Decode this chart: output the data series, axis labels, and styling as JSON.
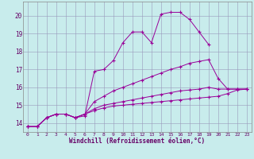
{
  "xlabel": "Windchill (Refroidissement éolien,°C)",
  "bg_color": "#c8ecec",
  "line_color": "#990099",
  "grid_color": "#9999bb",
  "xlim": [
    -0.5,
    23.5
  ],
  "ylim": [
    13.5,
    20.8
  ],
  "yticks": [
    14,
    15,
    16,
    17,
    18,
    19,
    20
  ],
  "xticks": [
    0,
    1,
    2,
    3,
    4,
    5,
    6,
    7,
    8,
    9,
    10,
    11,
    12,
    13,
    14,
    15,
    16,
    17,
    18,
    19,
    20,
    21,
    22,
    23
  ],
  "series": [
    {
      "x": [
        0,
        1,
        2,
        3,
        4,
        5,
        6,
        7,
        8,
        9,
        10,
        11,
        12,
        13,
        14,
        15,
        16,
        17,
        18,
        19
      ],
      "y": [
        13.8,
        13.8,
        14.3,
        14.5,
        14.5,
        14.3,
        14.4,
        16.9,
        17.0,
        17.5,
        18.5,
        19.1,
        19.1,
        18.5,
        20.1,
        20.2,
        20.2,
        19.8,
        19.1,
        18.4
      ]
    },
    {
      "x": [
        0,
        1,
        2,
        3,
        4,
        5,
        6,
        7,
        8,
        9,
        10,
        11,
        12,
        13,
        14,
        15,
        16,
        17,
        18,
        19,
        20,
        21,
        22,
        23
      ],
      "y": [
        13.8,
        13.8,
        14.3,
        14.5,
        14.5,
        14.3,
        14.5,
        15.2,
        15.5,
        15.8,
        16.0,
        16.2,
        16.4,
        16.6,
        16.8,
        17.0,
        17.15,
        17.35,
        17.45,
        17.55,
        16.5,
        15.9,
        15.9,
        15.9
      ]
    },
    {
      "x": [
        0,
        1,
        2,
        3,
        4,
        5,
        6,
        7,
        8,
        9,
        10,
        11,
        12,
        13,
        14,
        15,
        16,
        17,
        18,
        19,
        20,
        21,
        22,
        23
      ],
      "y": [
        13.8,
        13.8,
        14.3,
        14.5,
        14.5,
        14.3,
        14.5,
        14.8,
        15.0,
        15.1,
        15.2,
        15.3,
        15.4,
        15.5,
        15.6,
        15.7,
        15.8,
        15.85,
        15.9,
        16.0,
        15.9,
        15.9,
        15.9,
        15.9
      ]
    },
    {
      "x": [
        0,
        1,
        2,
        3,
        4,
        5,
        6,
        7,
        8,
        9,
        10,
        11,
        12,
        13,
        14,
        15,
        16,
        17,
        18,
        19,
        20,
        21,
        22,
        23
      ],
      "y": [
        13.8,
        13.8,
        14.3,
        14.5,
        14.5,
        14.3,
        14.5,
        14.7,
        14.85,
        14.95,
        15.0,
        15.05,
        15.1,
        15.15,
        15.2,
        15.25,
        15.3,
        15.35,
        15.4,
        15.45,
        15.5,
        15.65,
        15.85,
        15.9
      ]
    }
  ]
}
